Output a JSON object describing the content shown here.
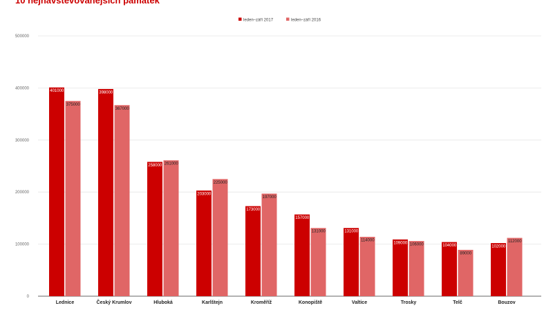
{
  "chart_data": {
    "type": "bar",
    "title": "10 nejnavštěvovanějších památek",
    "xlabel": "",
    "ylabel": "",
    "ylim": [
      0,
      500000
    ],
    "yticks": [
      0,
      100000,
      200000,
      300000,
      400000,
      500000
    ],
    "grid": true,
    "legend_position": "top-center",
    "categories": [
      "Lednice",
      "Český Krumlov",
      "Hluboká",
      "Karlštejn",
      "Kroměříž",
      "Konopiště",
      "Valtice",
      "Trosky",
      "Telč",
      "Bouzov"
    ],
    "series": [
      {
        "name": "leden–září 2017",
        "color": "#cc0000",
        "values": [
          401000,
          398000,
          258000,
          203000,
          173000,
          157000,
          131000,
          109000,
          104000,
          102000
        ]
      },
      {
        "name": "leden–září 2016",
        "color": "#e06666",
        "values": [
          375000,
          367000,
          261000,
          225000,
          197000,
          131000,
          114000,
          106000,
          89000,
          112000
        ]
      }
    ]
  }
}
